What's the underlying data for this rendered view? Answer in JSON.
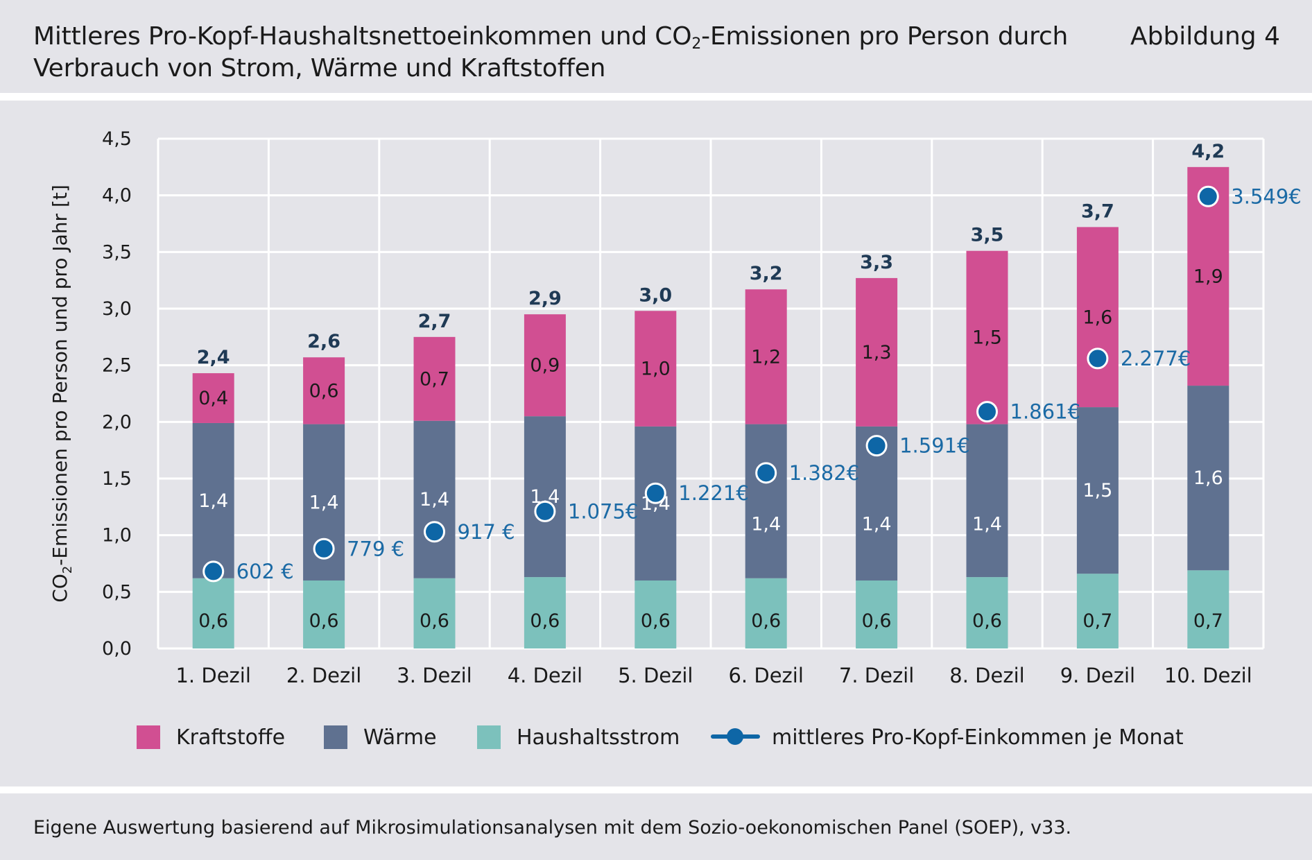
{
  "header": {
    "title_part1": "Mittleres Pro-Kopf-Haushaltsnettoeinkommen und CO",
    "title_sub": "2",
    "title_part2": "-Emissionen pro Person durch",
    "title_line2": "Verbrauch von Strom, Wärme und Kraftstoffen",
    "figure_label": "Abbildung 4"
  },
  "footer": {
    "note": "Eigene Auswertung basierend auf Mikrosimulationsanalysen mit dem Sozio-oekonomischen Panel (SOEP), v33."
  },
  "colors": {
    "Kraftstoffe": "#d14f92",
    "Wärme": "#5f7190",
    "Haushaltsstrom": "#7cc1bc",
    "income": "#0e66a6",
    "background": "#e4e4e9",
    "grid": "#ffffff"
  },
  "chart_data": {
    "type": "bar",
    "stacked": true,
    "categories": [
      "1. Dezil",
      "2. Dezil",
      "3. Dezil",
      "4. Dezil",
      "5. Dezil",
      "6. Dezil",
      "7. Dezil",
      "8. Dezil",
      "9. Dezil",
      "10. Dezil"
    ],
    "ylabel_part1": "CO",
    "ylabel_sub": "2",
    "ylabel_part2": "-Emissionen pro Person und pro Jahr [t]",
    "ylim": [
      0,
      4.5
    ],
    "yticks": [
      0,
      0.5,
      1.0,
      1.5,
      2.0,
      2.5,
      3.0,
      3.5,
      4.0,
      4.5
    ],
    "ytick_labels": [
      "0,0",
      "0,5",
      "1,0",
      "1,5",
      "2,0",
      "2,5",
      "3,0",
      "3,5",
      "4,0",
      "4,5"
    ],
    "grid": true,
    "legend_position": "bottom",
    "series": [
      {
        "name": "Haushaltsstrom",
        "values": [
          0.62,
          0.6,
          0.62,
          0.63,
          0.6,
          0.62,
          0.6,
          0.63,
          0.66,
          0.69
        ],
        "labels": [
          "0,6",
          "0,6",
          "0,6",
          "0,6",
          "0,6",
          "0,6",
          "0,6",
          "0,6",
          "0,7",
          "0,7"
        ]
      },
      {
        "name": "Wärme",
        "values": [
          1.37,
          1.38,
          1.39,
          1.42,
          1.36,
          1.36,
          1.36,
          1.35,
          1.47,
          1.63
        ],
        "labels": [
          "1,4",
          "1,4",
          "1,4",
          "1,4",
          "1,4",
          "1,4",
          "1,4",
          "1,4",
          "1,5",
          "1,6"
        ]
      },
      {
        "name": "Kraftstoffe",
        "values": [
          0.44,
          0.59,
          0.74,
          0.9,
          1.02,
          1.19,
          1.31,
          1.53,
          1.59,
          1.93
        ],
        "labels": [
          "0,4",
          "0,6",
          "0,7",
          "0,9",
          "1,0",
          "1,2",
          "1,3",
          "1,5",
          "1,6",
          "1,9"
        ]
      }
    ],
    "totals": [
      "2,4",
      "2,6",
      "2,7",
      "2,9",
      "3,0",
      "3,2",
      "3,3",
      "3,5",
      "3,7",
      "4,2"
    ],
    "income_series": {
      "name": "mittleres Pro-Kopf-Einkommen je Monat",
      "plot_y": [
        0.68,
        0.88,
        1.03,
        1.21,
        1.37,
        1.55,
        1.79,
        2.09,
        2.56,
        3.99
      ],
      "labels": [
        "602 €",
        "779 €",
        "917 €",
        "1.075€",
        "1.221€",
        "1.382€",
        "1.591€",
        "1.861€",
        "2.277€",
        "3.549€"
      ]
    },
    "legend": [
      "Kraftstoffe",
      "Wärme",
      "Haushaltsstrom",
      "mittleres Pro-Kopf-Einkommen je Monat"
    ]
  }
}
